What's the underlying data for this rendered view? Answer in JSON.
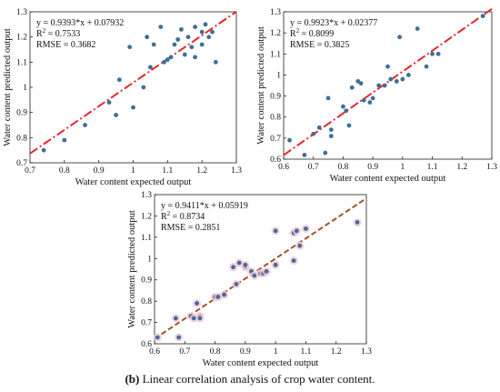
{
  "caption": {
    "label": "(b)",
    "text": "Linear correlation analysis of crop water content."
  },
  "colors": {
    "point": "#3f6f98",
    "fit_top": "#e8262b",
    "fit_bottom": "#a0522d",
    "bottom_point_halo": "#f4c8d8"
  },
  "chart_data": [
    {
      "type": "scatter",
      "xlabel": "Water content expected output",
      "ylabel": "Water content predicted output",
      "xlim": [
        0.7,
        1.3
      ],
      "ylim": [
        0.7,
        1.3
      ],
      "xticks": [
        "0.7",
        "0.8",
        "0.9",
        "1",
        "1.1",
        "1.2",
        "1.3"
      ],
      "yticks": [
        "0.7",
        "0.8",
        "0.9",
        "1",
        "1.1",
        "1.2",
        "1.3"
      ],
      "annotations": [
        "y = 0.9393*x + 0.07932",
        "R",
        "2",
        " = 0.7533",
        "RMSE = 0.3682"
      ],
      "fit": {
        "slope": 0.9393,
        "intercept": 0.07932
      },
      "grid": false,
      "x": [
        0.74,
        0.8,
        0.86,
        0.93,
        0.95,
        0.96,
        0.99,
        1.0,
        1.03,
        1.04,
        1.05,
        1.06,
        1.08,
        1.09,
        1.1,
        1.11,
        1.12,
        1.13,
        1.14,
        1.15,
        1.16,
        1.17,
        1.18,
        1.18,
        1.2,
        1.2,
        1.21,
        1.22,
        1.23,
        1.24
      ],
      "y": [
        0.75,
        0.79,
        0.85,
        0.94,
        0.89,
        1.03,
        1.16,
        0.92,
        1.0,
        1.2,
        1.08,
        1.17,
        1.24,
        1.1,
        1.11,
        1.12,
        1.17,
        1.19,
        1.23,
        1.13,
        1.2,
        1.16,
        1.12,
        1.24,
        1.17,
        1.22,
        1.25,
        1.2,
        1.22,
        1.1
      ]
    },
    {
      "type": "scatter",
      "xlabel": "Water content expected output",
      "ylabel": "Water content predicted output",
      "xlim": [
        0.6,
        1.3
      ],
      "ylim": [
        0.6,
        1.3
      ],
      "xticks": [
        "0.6",
        "0.7",
        "0.8",
        "0.9",
        "1",
        "1.1",
        "1.2",
        "1.3"
      ],
      "yticks": [
        "0.6",
        "0.7",
        "0.8",
        "0.9",
        "1",
        "1.1",
        "1.2",
        "1.3"
      ],
      "annotations": [
        "y = 0.9923*x + 0.02377",
        "R",
        "2",
        " = 0.8099",
        "RMSE = 0.3825"
      ],
      "fit": {
        "slope": 0.9923,
        "intercept": 0.02377
      },
      "grid": false,
      "x": [
        0.62,
        0.67,
        0.7,
        0.72,
        0.74,
        0.75,
        0.76,
        0.76,
        0.8,
        0.81,
        0.82,
        0.83,
        0.85,
        0.86,
        0.87,
        0.89,
        0.9,
        0.92,
        0.94,
        0.95,
        0.96,
        0.98,
        0.99,
        1.0,
        1.02,
        1.05,
        1.08,
        1.1,
        1.12,
        1.27
      ],
      "y": [
        0.69,
        0.62,
        0.72,
        0.75,
        0.63,
        0.89,
        0.74,
        0.71,
        0.85,
        0.83,
        0.76,
        0.94,
        0.97,
        0.96,
        0.88,
        0.87,
        0.89,
        0.95,
        0.95,
        1.04,
        0.98,
        0.97,
        1.18,
        0.98,
        1.0,
        1.22,
        1.04,
        1.1,
        1.1,
        1.28
      ]
    },
    {
      "type": "scatter",
      "xlabel": "Water content expected output",
      "ylabel": "Water content predicted output",
      "xlim": [
        0.6,
        1.3
      ],
      "ylim": [
        0.6,
        1.3
      ],
      "xticks": [
        "0.6",
        "0.7",
        "0.8",
        "0.9",
        "1",
        "1.1",
        "1.2",
        "1.3"
      ],
      "yticks": [
        "0.6",
        "0.7",
        "0.8",
        "0.9",
        "1",
        "1.1",
        "1.2",
        "1.3"
      ],
      "annotations": [
        "y = 0.9411*x + 0.05919",
        "R",
        "2",
        " = 0.8734",
        "RMSE = 0.2851"
      ],
      "fit": {
        "slope": 0.9411,
        "intercept": 0.05919
      },
      "grid": false,
      "x": [
        0.61,
        0.67,
        0.68,
        0.72,
        0.73,
        0.74,
        0.75,
        0.75,
        0.8,
        0.81,
        0.83,
        0.86,
        0.87,
        0.88,
        0.9,
        0.9,
        0.92,
        0.93,
        0.95,
        0.96,
        0.97,
        1.0,
        1.0,
        1.06,
        1.06,
        1.07,
        1.08,
        1.1,
        1.27
      ],
      "y": [
        0.63,
        0.72,
        0.63,
        0.73,
        0.72,
        0.79,
        0.73,
        0.72,
        0.82,
        0.82,
        0.83,
        0.96,
        0.88,
        0.98,
        0.96,
        0.97,
        0.94,
        0.92,
        0.93,
        0.93,
        0.94,
        0.97,
        1.13,
        1.12,
        0.99,
        1.13,
        1.06,
        1.14,
        1.17
      ]
    }
  ]
}
